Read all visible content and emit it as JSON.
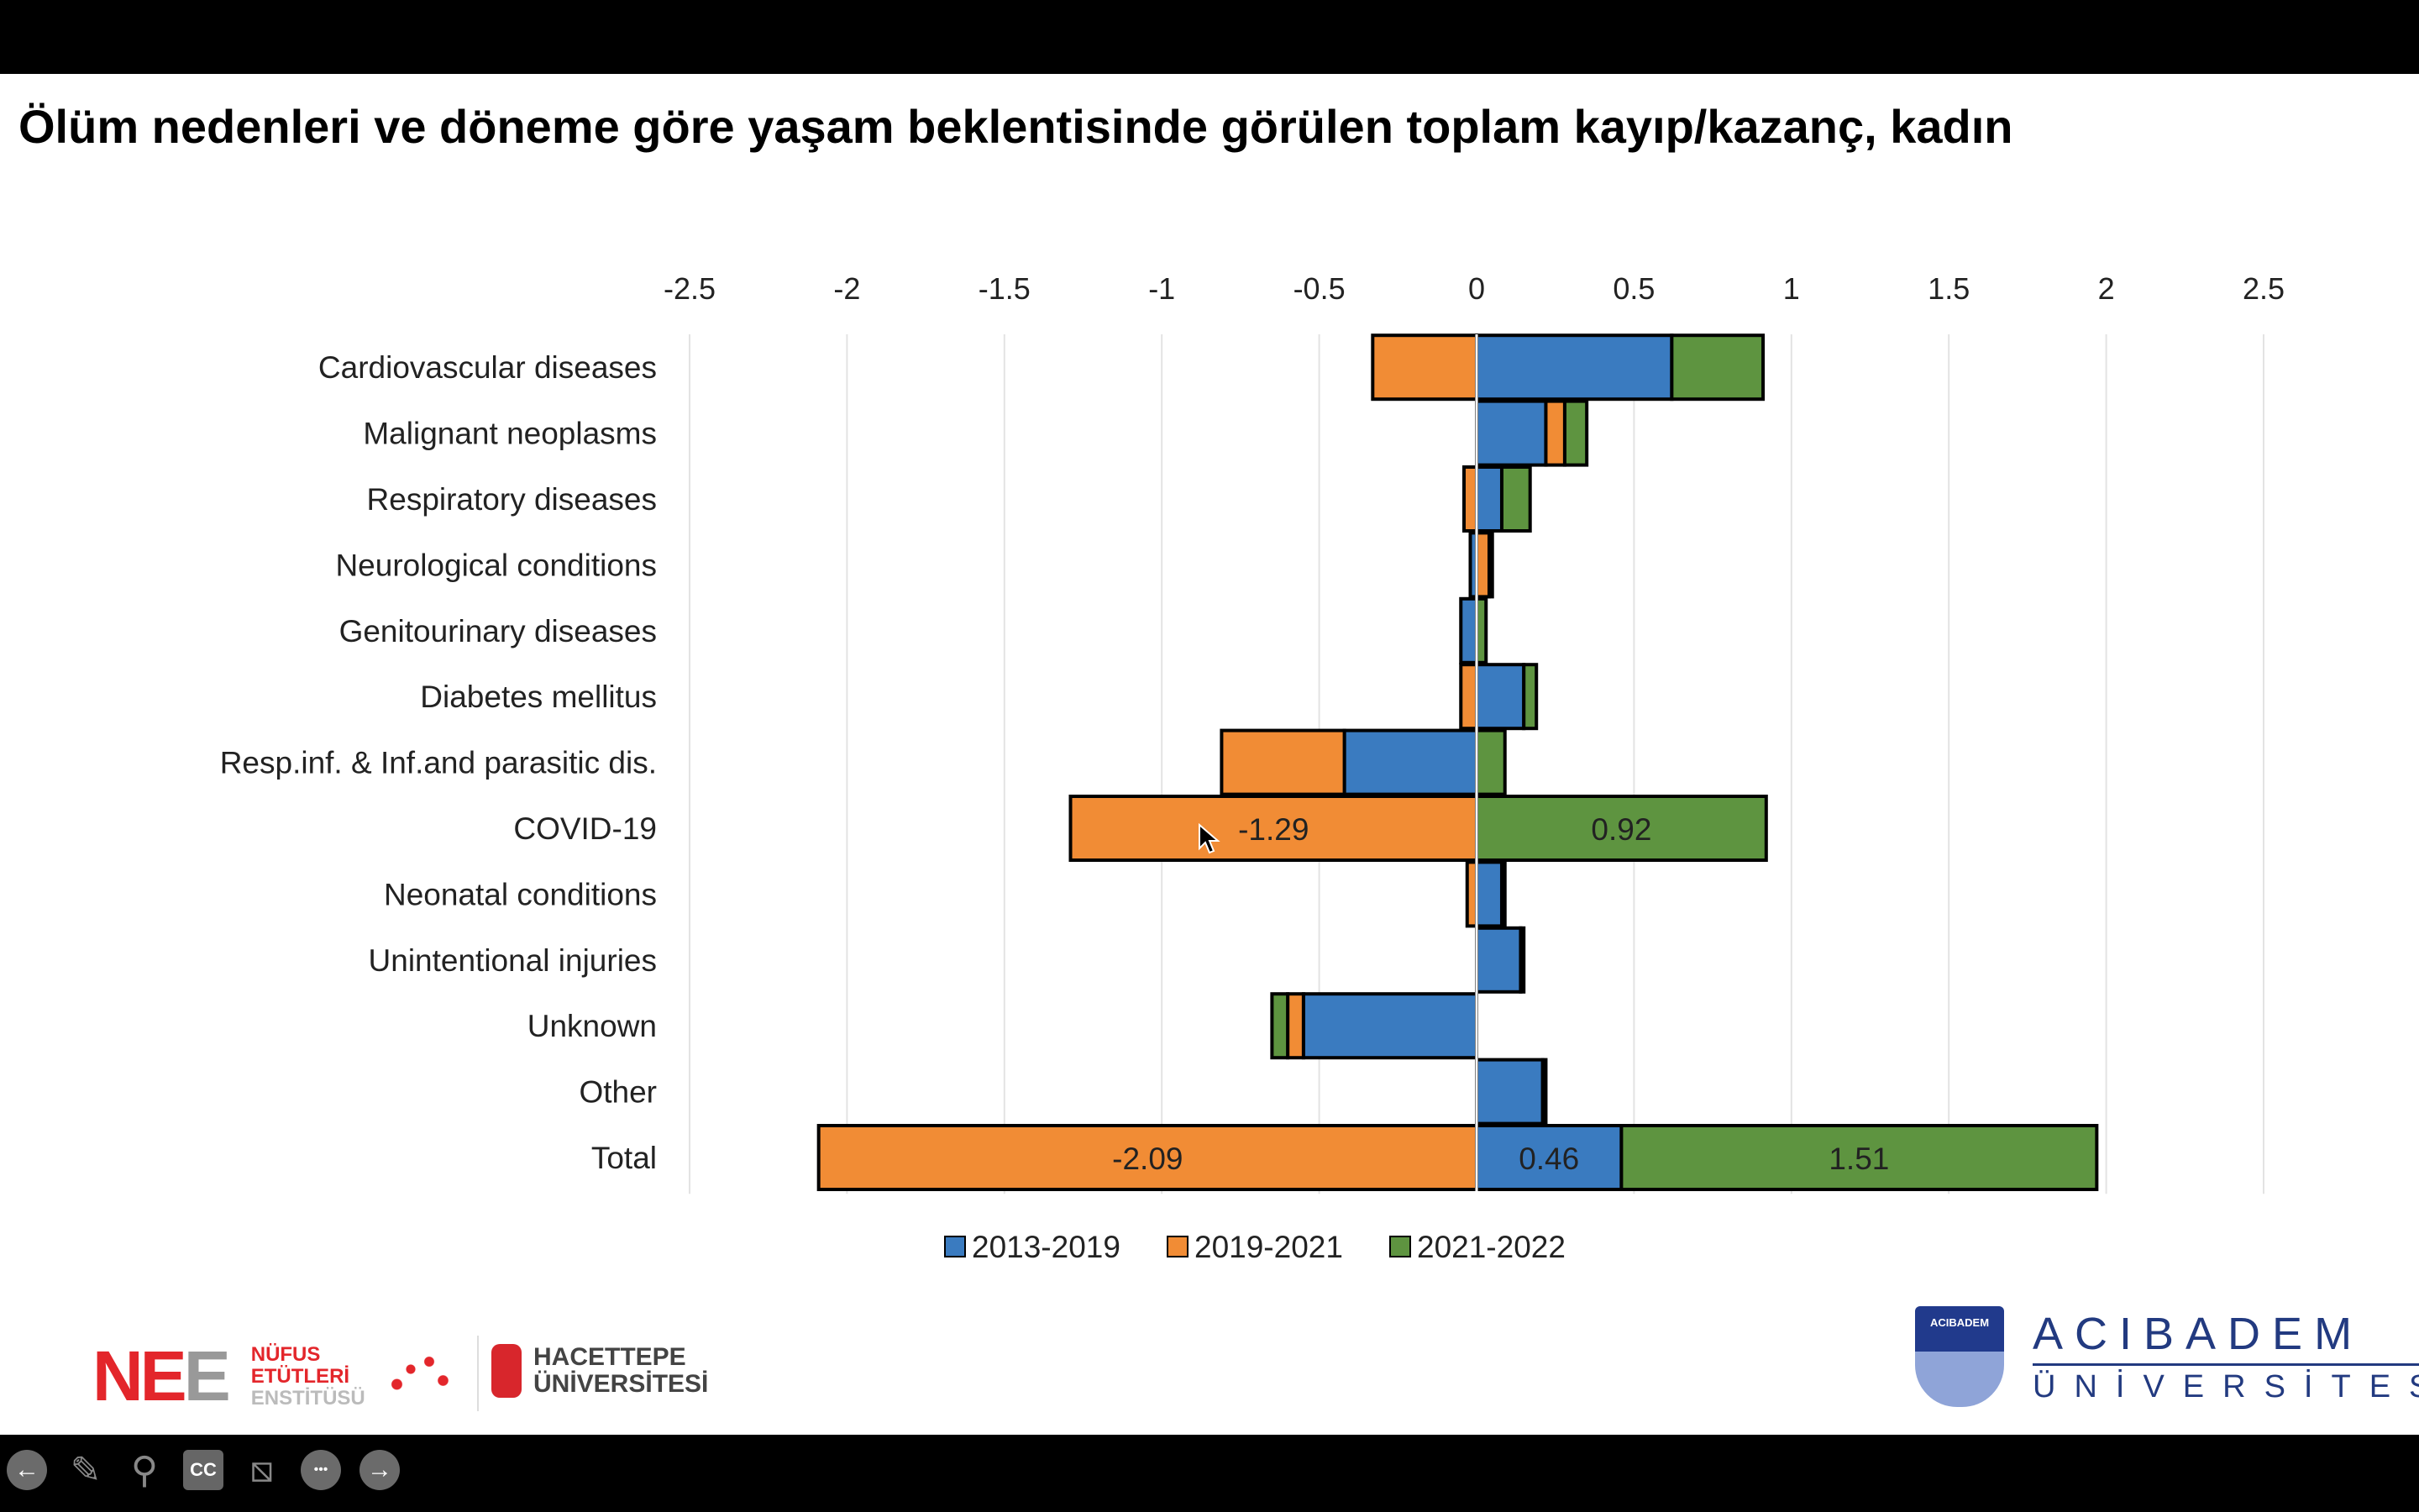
{
  "chart_data": {
    "type": "bar",
    "orientation": "horizontal-stacked",
    "title": "Ölüm nedenleri ve döneme göre yaşam beklentisinde görülen toplam kayıp/kazanç, kadın",
    "xlim": [
      -2.5,
      2.5
    ],
    "xticks": [
      "-2.5",
      "-2",
      "-1.5",
      "-1",
      "-0.5",
      "0",
      "0.5",
      "1",
      "1.5",
      "2",
      "2.5"
    ],
    "xtick_values": [
      -2.5,
      -2,
      -1.5,
      -1,
      -0.5,
      0,
      0.5,
      1,
      1.5,
      2,
      2.5
    ],
    "grid": true,
    "legend_position": "bottom",
    "categories": [
      "Cardiovascular diseases",
      "Malignant neoplasms",
      "Respiratory diseases",
      "Neurological conditions",
      "Genitourinary diseases",
      "Diabetes mellitus",
      "Resp.inf. & Inf.and parasitic dis.",
      "COVID-19",
      "Neonatal conditions",
      "Unintentional injuries",
      "Unknown",
      "Other",
      "Total"
    ],
    "series": [
      {
        "name": "2013-2019",
        "color": "#3a7bc0",
        "values": [
          0.62,
          0.22,
          0.08,
          -0.02,
          -0.05,
          0.15,
          -0.42,
          0,
          0.08,
          0.14,
          -0.55,
          0.21,
          0.46
        ]
      },
      {
        "name": "2019-2021",
        "color": "#f18c35",
        "values": [
          -0.33,
          0.06,
          -0.04,
          0.04,
          0,
          -0.05,
          -0.39,
          -1.29,
          -0.03,
          0,
          -0.05,
          0,
          -2.09
        ]
      },
      {
        "name": "2021-2022",
        "color": "#5e9440",
        "values": [
          0.29,
          0.07,
          0.09,
          0.01,
          0.03,
          0.04,
          0.09,
          0.92,
          0.01,
          0.01,
          -0.05,
          0.01,
          1.51
        ]
      }
    ],
    "data_labels": [
      {
        "category": "COVID-19",
        "series": "2019-2021",
        "text": "-1.29"
      },
      {
        "category": "COVID-19",
        "series": "2021-2022",
        "text": "0.92"
      },
      {
        "category": "Total",
        "series": "2019-2021",
        "text": "-2.09"
      },
      {
        "category": "Total",
        "series": "2013-2019",
        "text": "0.46"
      },
      {
        "category": "Total",
        "series": "2021-2022",
        "text": "1.51"
      }
    ]
  },
  "toolbar": {
    "back": "←",
    "pen": "✎",
    "search": "⚲",
    "cc": "CC",
    "video": "⧅",
    "more": "•••",
    "next": "→"
  },
  "logos": {
    "nee": {
      "n": "NE",
      "e": "E",
      "l1": "NÜFUS",
      "l2": "ETÜTLERİ",
      "l3": "ENSTİTÜSÜ"
    },
    "hacettepe": {
      "l1": "HACETTEPE",
      "l2": "ÜNİVERSİTESİ"
    },
    "acibadem": {
      "l1": "ACIBADEM",
      "l2": "ÜNİVERSİTESİ",
      "shield": "ACIBADEM"
    }
  }
}
